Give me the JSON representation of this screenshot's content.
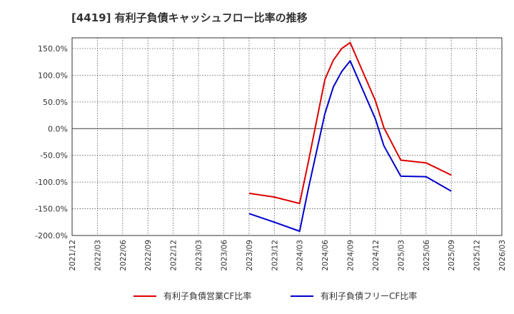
{
  "chart_data": {
    "type": "line",
    "title": "[4419]  有利子負債キャッシュフロー比率の推移",
    "xlabel": "",
    "ylabel": "",
    "ylim": [
      -200,
      170
    ],
    "y_ticks": [
      150,
      100,
      50,
      0,
      -50,
      -100,
      -150,
      -200
    ],
    "y_tick_labels": [
      "150.0%",
      "100.0%",
      "50.0%",
      "0.0%",
      "-50.0%",
      "-100.0%",
      "-150.0%",
      "-200.0%"
    ],
    "x_start": "2021/12",
    "x_ticks": [
      "2021/12",
      "2022/03",
      "2022/06",
      "2022/09",
      "2022/12",
      "2023/03",
      "2023/06",
      "2023/09",
      "2023/12",
      "2024/03",
      "2024/06",
      "2024/09",
      "2024/12",
      "2025/03",
      "2025/06",
      "2025/09",
      "2025/12",
      "2026/03"
    ],
    "grid": true,
    "legend_position": "bottom",
    "series": [
      {
        "name": "有利子負債営業CF比率",
        "color": "#dd0000",
        "points": [
          {
            "x": 21,
            "y": -121
          },
          {
            "x": 24,
            "y": -128
          },
          {
            "x": 27,
            "y": -140
          },
          {
            "x": 28,
            "y": -65
          },
          {
            "x": 30,
            "y": 92
          },
          {
            "x": 31,
            "y": 128
          },
          {
            "x": 32,
            "y": 150
          },
          {
            "x": 33,
            "y": 161
          },
          {
            "x": 36,
            "y": 52
          },
          {
            "x": 37,
            "y": 2
          },
          {
            "x": 39,
            "y": -59
          },
          {
            "x": 42,
            "y": -64
          },
          {
            "x": 45,
            "y": -87
          }
        ]
      },
      {
        "name": "有利子負債フリーCF比率",
        "color": "#0000cc",
        "points": [
          {
            "x": 21,
            "y": -159
          },
          {
            "x": 24,
            "y": -175
          },
          {
            "x": 27,
            "y": -192
          },
          {
            "x": 28,
            "y": -115
          },
          {
            "x": 30,
            "y": 28
          },
          {
            "x": 31,
            "y": 78
          },
          {
            "x": 32,
            "y": 107
          },
          {
            "x": 33,
            "y": 127
          },
          {
            "x": 36,
            "y": 18
          },
          {
            "x": 37,
            "y": -32
          },
          {
            "x": 39,
            "y": -89
          },
          {
            "x": 42,
            "y": -90
          },
          {
            "x": 45,
            "y": -117
          }
        ]
      }
    ]
  }
}
